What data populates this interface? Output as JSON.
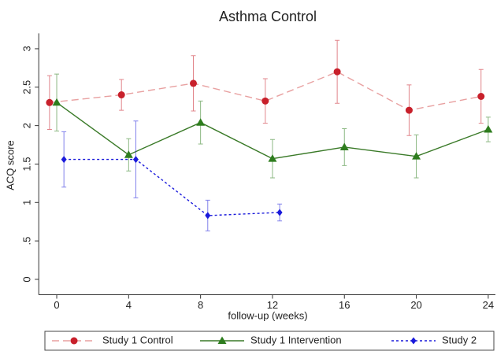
{
  "chart_data": {
    "type": "line",
    "title": "Asthma Control",
    "x_label": "follow-up (weeks)",
    "y_label": "ACQ score",
    "xlim": [
      -1,
      24.4
    ],
    "ylim": [
      -0.2,
      3.2
    ],
    "xticks": [
      0,
      4,
      8,
      12,
      16,
      20,
      24
    ],
    "yticks": [
      0,
      {
        "value": 0.5,
        "label": ".5"
      },
      1,
      1.5,
      2,
      2.5,
      3
    ],
    "grid": false,
    "legend_position": "bottom",
    "series": [
      {
        "name": "Study 1 Control",
        "color": "#c8202b",
        "line_color": "#e8a0a0",
        "line_style": "dashed",
        "marker": "circle",
        "x": [
          -0.4,
          3.6,
          7.6,
          11.6,
          15.6,
          19.6,
          23.6
        ],
        "values": [
          2.3,
          2.4,
          2.55,
          2.32,
          2.7,
          2.2,
          2.38
        ],
        "errors": [
          0.35,
          0.2,
          0.36,
          0.29,
          0.41,
          0.33,
          0.35
        ]
      },
      {
        "name": "Study 1 Intervention",
        "color": "#2e7d1e",
        "line_color": "#3a7a28",
        "line_style": "solid",
        "marker": "triangle",
        "x": [
          0,
          4,
          8,
          12,
          16,
          20,
          24
        ],
        "values": [
          2.3,
          1.62,
          2.04,
          1.57,
          1.72,
          1.6,
          1.95
        ],
        "errors": [
          0.37,
          0.21,
          0.28,
          0.25,
          0.24,
          0.28,
          0.16
        ]
      },
      {
        "name": "Study 2",
        "color": "#1a1adb",
        "line_color": "#1a1adb",
        "line_style": "dotted",
        "marker": "diamond",
        "x": [
          0.4,
          4.4,
          8.4,
          12.4
        ],
        "values": [
          1.56,
          1.56,
          0.83,
          0.87
        ],
        "errors": [
          0.36,
          0.5,
          0.2,
          0.11
        ]
      }
    ]
  }
}
